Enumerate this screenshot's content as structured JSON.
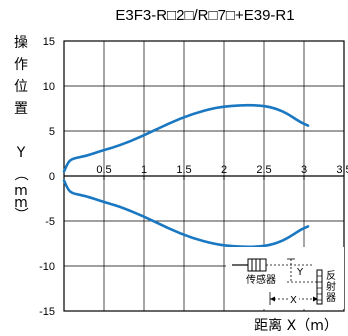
{
  "chart_data": {
    "type": "line",
    "title": "E3F3-R□2□/R□7□+E39-R1",
    "xlabel": "距离 X（m）",
    "ylabel": "操作位置 Y（mm）",
    "xlim": [
      0,
      3.5
    ],
    "ylim": [
      -15,
      15
    ],
    "xticks": [
      "0.5",
      "1",
      "1.5",
      "2",
      "2.5",
      "3",
      "3.5"
    ],
    "yticks": [
      "15",
      "10",
      "5",
      "0",
      "-5",
      "-10",
      "-15"
    ],
    "grid": true,
    "series_color": "#1a78c2",
    "series": [
      {
        "x": [
          0,
          0.05,
          0.1,
          0.2,
          0.3,
          0.5,
          0.7,
          1.0,
          1.3,
          1.6,
          1.9,
          2.1,
          2.3,
          2.5,
          2.65,
          2.8,
          2.95,
          3.05
        ],
        "y": [
          0.5,
          1.5,
          1.9,
          2.1,
          2.3,
          2.9,
          3.4,
          4.5,
          5.8,
          6.9,
          7.6,
          7.8,
          7.9,
          7.8,
          7.5,
          6.9,
          6.0,
          5.6
        ]
      },
      {
        "x": [
          0,
          0.05,
          0.1,
          0.2,
          0.3,
          0.5,
          0.7,
          1.0,
          1.3,
          1.6,
          1.9,
          2.1,
          2.3,
          2.5,
          2.65,
          2.8,
          2.95,
          3.05
        ],
        "y": [
          -0.5,
          -1.5,
          -1.9,
          -2.1,
          -2.3,
          -2.9,
          -3.4,
          -4.5,
          -5.8,
          -6.9,
          -7.6,
          -7.8,
          -7.9,
          -7.8,
          -7.5,
          -6.9,
          -6.0,
          -5.6
        ]
      }
    ]
  },
  "inset": {
    "sensor_label": "传感器",
    "reflector_label": "反射器",
    "y_label": "Y",
    "x_label": "X"
  }
}
